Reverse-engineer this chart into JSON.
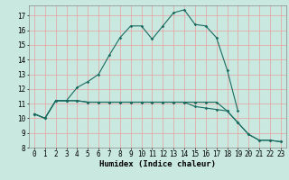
{
  "title": "",
  "xlabel": "Humidex (Indice chaleur)",
  "ylabel": "",
  "bg_color": "#c8e8e0",
  "grid_color": "#e8a0a0",
  "line_color": "#1a6b60",
  "xlim": [
    -0.5,
    23.5
  ],
  "ylim": [
    8,
    17.7
  ],
  "x": [
    0,
    1,
    2,
    3,
    4,
    5,
    6,
    7,
    8,
    9,
    10,
    11,
    12,
    13,
    14,
    15,
    16,
    17,
    18,
    19,
    20,
    21,
    22,
    23
  ],
  "line1": [
    10.3,
    10.0,
    11.2,
    11.2,
    12.1,
    12.5,
    13.0,
    14.3,
    15.5,
    16.3,
    16.3,
    15.4,
    16.3,
    17.2,
    17.4,
    16.4,
    16.3,
    15.5,
    13.3,
    10.5,
    null,
    null,
    null,
    null
  ],
  "line2": [
    10.3,
    10.0,
    11.2,
    11.2,
    11.2,
    11.1,
    11.1,
    11.1,
    11.1,
    11.1,
    11.1,
    11.1,
    11.1,
    11.1,
    11.1,
    10.8,
    10.7,
    10.6,
    10.5,
    9.7,
    8.9,
    8.5,
    8.5,
    8.4
  ],
  "line3": [
    10.3,
    10.0,
    11.2,
    11.2,
    11.2,
    11.1,
    11.1,
    11.1,
    11.1,
    11.1,
    11.1,
    11.1,
    11.1,
    11.1,
    11.1,
    11.1,
    11.1,
    11.1,
    10.5,
    9.7,
    8.9,
    8.5,
    8.5,
    8.4
  ],
  "yticks": [
    8,
    9,
    10,
    11,
    12,
    13,
    14,
    15,
    16,
    17
  ],
  "xticks": [
    0,
    1,
    2,
    3,
    4,
    5,
    6,
    7,
    8,
    9,
    10,
    11,
    12,
    13,
    14,
    15,
    16,
    17,
    18,
    19,
    20,
    21,
    22,
    23
  ],
  "tick_fontsize": 5.5,
  "label_fontsize": 6.5,
  "marker": "D",
  "markersize": 1.8,
  "linewidth": 0.8
}
